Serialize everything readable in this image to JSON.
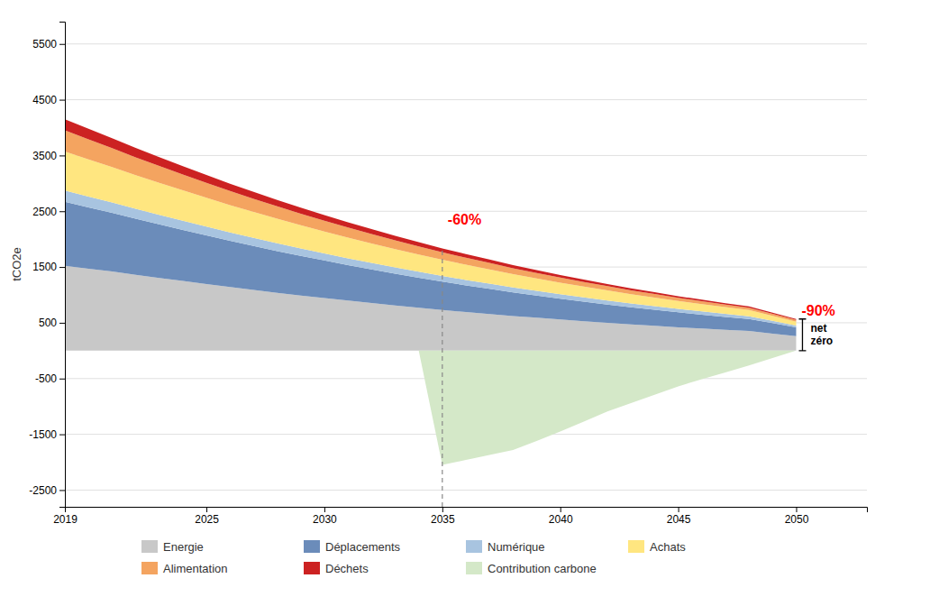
{
  "chart_data": {
    "type": "area",
    "stacked": true,
    "ylabel": "tCO2e",
    "x": [
      2019,
      2020,
      2021,
      2022,
      2023,
      2024,
      2025,
      2026,
      2027,
      2028,
      2029,
      2030,
      2031,
      2032,
      2033,
      2034,
      2035,
      2036,
      2037,
      2038,
      2039,
      2040,
      2041,
      2042,
      2043,
      2044,
      2045,
      2046,
      2047,
      2048,
      2049,
      2050
    ],
    "series": [
      {
        "name": "Energie",
        "color": "#c8c8c8",
        "values": [
          1520,
          1470,
          1420,
          1360,
          1305,
          1250,
          1195,
          1140,
          1088,
          1038,
          990,
          944,
          898,
          854,
          812,
          770,
          730,
          693,
          658,
          622,
          590,
          558,
          528,
          500,
          472,
          446,
          420,
          397,
          374,
          352,
          306,
          260
        ]
      },
      {
        "name": "Déplacements",
        "color": "#6b8cba",
        "values": [
          1150,
          1100,
          1052,
          1005,
          960,
          916,
          872,
          829,
          788,
          748,
          710,
          673,
          637,
          603,
          570,
          538,
          508,
          479,
          451,
          424,
          399,
          374,
          351,
          328,
          307,
          287,
          267,
          249,
          231,
          214,
          187,
          160
        ]
      },
      {
        "name": "Numérique",
        "color": "#a8c4e0",
        "values": [
          200,
          193,
          186,
          179,
          172,
          165,
          158,
          152,
          146,
          140,
          134,
          128,
          122,
          117,
          112,
          107,
          102,
          97,
          93,
          88,
          84,
          80,
          76,
          72,
          68,
          65,
          61,
          58,
          55,
          52,
          42,
          32
        ]
      },
      {
        "name": "Achats",
        "color": "#ffe680",
        "values": [
          700,
          667,
          635,
          604,
          574,
          545,
          517,
          490,
          464,
          439,
          415,
          392,
          370,
          349,
          328,
          309,
          290,
          272,
          255,
          238,
          223,
          208,
          193,
          180,
          167,
          154,
          142,
          131,
          120,
          110,
          89,
          68
        ]
      },
      {
        "name": "Alimentation",
        "color": "#f4a460",
        "values": [
          380,
          359,
          339,
          320,
          302,
          285,
          268,
          252,
          237,
          222,
          208,
          194,
          182,
          169,
          157,
          146,
          135,
          125,
          116,
          107,
          98,
          90,
          83,
          76,
          69,
          63,
          57,
          52,
          47,
          42,
          37,
          32
        ]
      },
      {
        "name": "Déchets",
        "color": "#cc2222",
        "values": [
          200,
          189,
          178,
          168,
          158,
          149,
          140,
          131,
          123,
          115,
          107,
          100,
          93,
          87,
          81,
          75,
          70,
          65,
          60,
          55,
          51,
          47,
          43,
          39,
          36,
          33,
          30,
          27,
          24,
          22,
          19,
          16
        ]
      },
      {
        "name": "Contribution carbone",
        "color": "#d4e8c8",
        "values": [
          0,
          0,
          0,
          0,
          0,
          0,
          0,
          0,
          0,
          0,
          0,
          0,
          0,
          0,
          0,
          0,
          -2050,
          -1960,
          -1870,
          -1780,
          -1620,
          -1450,
          -1270,
          -1090,
          -940,
          -790,
          -640,
          -510,
          -390,
          -265,
          -130,
          0
        ]
      }
    ],
    "xlim": [
      2019,
      2053
    ],
    "xticks": [
      2019,
      2025,
      2030,
      2035,
      2040,
      2045,
      2050
    ],
    "ylim": [
      -2800,
      5900
    ],
    "yticks": [
      -2500,
      -1500,
      -500,
      500,
      1500,
      2500,
      3500,
      4500,
      5500
    ],
    "grid": true,
    "legend": "bottom",
    "reference_lines": [
      {
        "x": 2035,
        "line_style": "dashed"
      }
    ],
    "annotations": [
      {
        "text": "-60%",
        "x": 2035,
        "y": 2350
      },
      {
        "text": "-90%",
        "x": 2050,
        "y": 720
      },
      {
        "text": "net\nzéro",
        "x": 2050
      }
    ]
  }
}
